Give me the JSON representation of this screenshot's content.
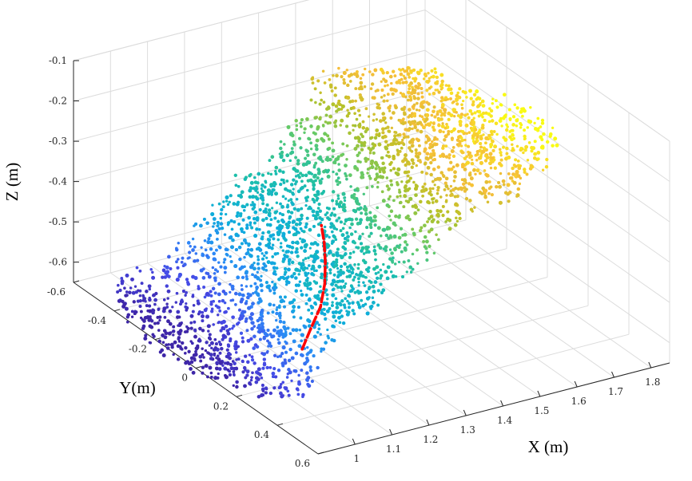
{
  "chart_data": {
    "type": "scatter",
    "subtype": "3d-point-cloud",
    "xlabel": "X (m)",
    "ylabel": "Y(m)",
    "zlabel": "Z (m)",
    "xlim": [
      0.9,
      1.85
    ],
    "ylim": [
      -0.6,
      0.6
    ],
    "zlim": [
      -0.65,
      -0.1
    ],
    "x_ticks": [
      1,
      1.1,
      1.2,
      1.3,
      1.4,
      1.5,
      1.6,
      1.7,
      1.8
    ],
    "x_tick_labels": [
      "1",
      "1.1",
      "1.2",
      "1.3",
      "1.4",
      "1.5",
      "1.6",
      "1.7",
      "1.8"
    ],
    "y_ticks": [
      -0.6,
      -0.4,
      -0.2,
      0,
      0.2,
      0.4,
      0.6
    ],
    "y_tick_labels": [
      "-0.6",
      "-0.4",
      "-0.2",
      "0",
      "0.2",
      "0.4",
      "0.6"
    ],
    "z_ticks": [
      -0.1,
      -0.2,
      -0.3,
      -0.4,
      -0.5,
      -0.6
    ],
    "z_tick_labels": [
      "-0.1",
      "-0.2",
      "-0.3",
      "-0.4",
      "-0.5",
      "-0.6"
    ],
    "grid": true,
    "colormap": "parula (Z height: blue low → yellow high)",
    "trajectory": {
      "color": "#ff0000",
      "style": "dashed",
      "points": [
        {
          "x": 1.05,
          "y": 0.25,
          "z": -0.55
        },
        {
          "x": 1.1,
          "y": 0.2,
          "z": -0.53
        },
        {
          "x": 1.16,
          "y": 0.14,
          "z": -0.51
        },
        {
          "x": 1.21,
          "y": 0.07,
          "z": -0.49
        },
        {
          "x": 1.25,
          "y": 0.0,
          "z": -0.47
        },
        {
          "x": 1.28,
          "y": -0.06,
          "z": -0.45
        },
        {
          "x": 1.3,
          "y": -0.11,
          "z": -0.43
        }
      ]
    }
  },
  "colors": {
    "trajectory": "#ff0000",
    "grid": "#dcdcdc",
    "axis": "#262626"
  }
}
